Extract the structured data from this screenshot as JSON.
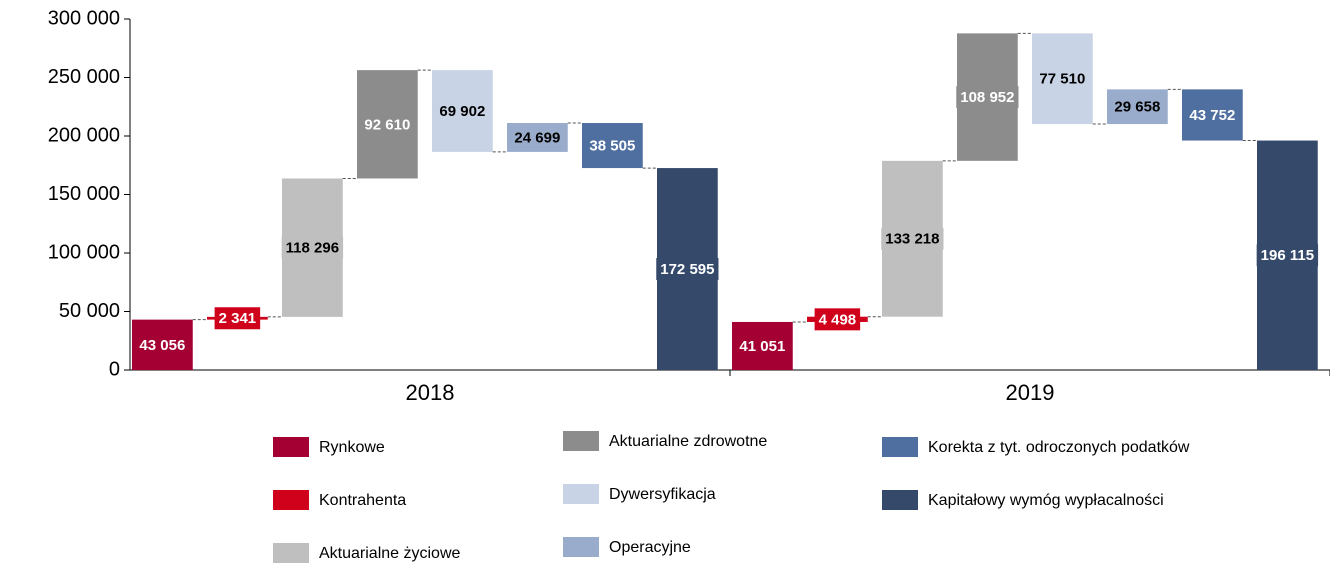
{
  "chart_data": {
    "type": "waterfall",
    "categories": [
      "2018",
      "2019"
    ],
    "series": [
      {
        "name": "Rynkowe",
        "color": "#a50034",
        "values": [
          43056,
          41051
        ],
        "value_labels": [
          "43 056",
          "41 051"
        ]
      },
      {
        "name": "Kontrahenta",
        "color": "#d0021b",
        "values": [
          2341,
          4498
        ],
        "value_labels": [
          "2 341",
          "4 498"
        ]
      },
      {
        "name": "Aktuarialne życiowe",
        "color": "#bfbfbf",
        "values": [
          118296,
          133218
        ],
        "value_labels": [
          "118 296",
          "133 218"
        ]
      },
      {
        "name": "Aktuarialne zdrowotne",
        "color": "#8c8c8c",
        "values": [
          92610,
          108952
        ],
        "value_labels": [
          "92 610",
          "108 952"
        ]
      },
      {
        "name": "Dywersyfikacja",
        "color": "#c9d3e6",
        "values": [
          -69902,
          -77510
        ],
        "value_labels": [
          "69 902",
          "77 510"
        ]
      },
      {
        "name": "Operacyjne",
        "color": "#9aaccb",
        "values": [
          24699,
          29658
        ],
        "value_labels": [
          "24 699",
          "29 658"
        ]
      },
      {
        "name": "Korekta z tyt. odroczonych podatków",
        "color": "#4f6fa0",
        "values": [
          -38505,
          -43752
        ],
        "value_labels": [
          "38 505",
          "43 752"
        ]
      },
      {
        "name": "Kapitałowy wymóg wypłacalności",
        "color": "#354a6b",
        "values": [
          172595,
          196115
        ],
        "value_labels": [
          "172 595",
          "196 115"
        ]
      }
    ],
    "ylim": [
      0,
      300000
    ],
    "yticks": [
      0,
      {
        "value": 50000,
        "label": "50 000"
      },
      {
        "value": 100000,
        "label": "100 000"
      },
      {
        "value": 150000,
        "label": "150 000"
      },
      {
        "value": 200000,
        "label": "200 000"
      },
      {
        "value": 250000,
        "label": "250 000"
      },
      {
        "value": 300000,
        "label": "300 000"
      }
    ],
    "grid": false
  }
}
